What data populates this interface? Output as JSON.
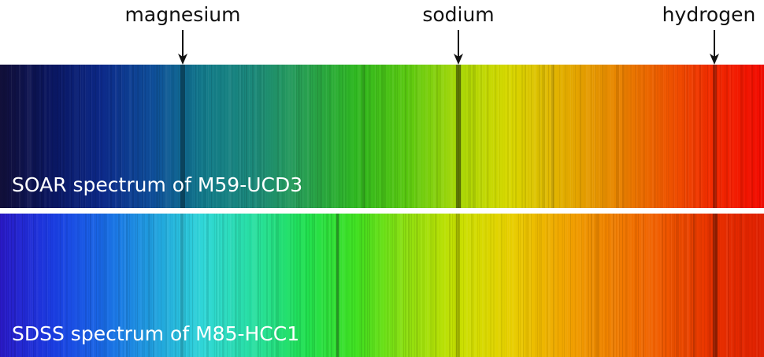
{
  "markers": [
    {
      "label": "magnesium"
    },
    {
      "label": "sodium"
    },
    {
      "label": "hydrogen"
    }
  ],
  "spectra": [
    {
      "caption": "SOAR spectrum of M59-UCD3"
    },
    {
      "caption": "SDSS spectrum of M85-HCC1"
    }
  ],
  "colors": {
    "arrow": "#111111",
    "caption": "#ffffff",
    "top_gradient": [
      "#12103a",
      "#0a1660",
      "#0d2a8a",
      "#0f4f9a",
      "#127a8a",
      "#1c8a7a",
      "#28a050",
      "#2fb820",
      "#5ac810",
      "#a8d808",
      "#d8d800",
      "#e2b000",
      "#e88a00",
      "#ee5a00",
      "#f22a00",
      "#f20a00"
    ],
    "bottom_gradient": [
      "#2a1ac8",
      "#1a3ae0",
      "#1a6ae8",
      "#20a0e0",
      "#30d8d8",
      "#28e0a0",
      "#20e050",
      "#40e020",
      "#90e010",
      "#c8e000",
      "#e8d000",
      "#f0a800",
      "#f08000",
      "#f05a00",
      "#e83000",
      "#e02000"
    ]
  }
}
